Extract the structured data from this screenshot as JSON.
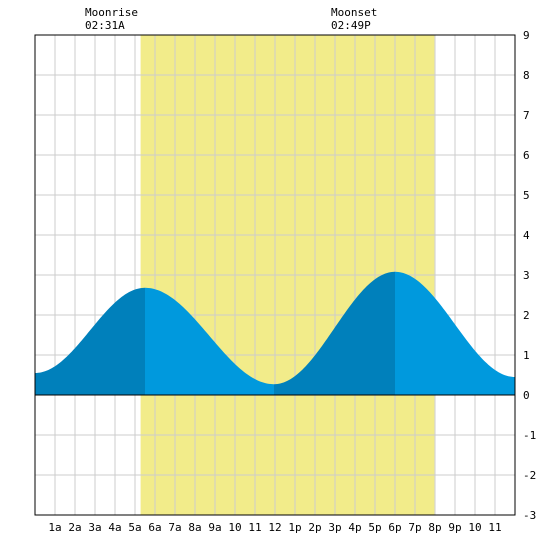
{
  "header": {
    "moonrise_label": "Moonrise",
    "moonrise_time": "02:31A",
    "moonset_label": "Moonset",
    "moonset_time": "02:49P"
  },
  "chart_data": {
    "type": "area",
    "title": "",
    "xlabel": "",
    "ylabel": "",
    "xlim": [
      0,
      24
    ],
    "ylim": [
      -3,
      9
    ],
    "grid": true,
    "y_ticks": [
      9,
      8,
      7,
      6,
      5,
      4,
      3,
      2,
      1,
      0,
      -1,
      -2,
      -3
    ],
    "x_ticks": [
      {
        "x": 1,
        "label": "1a"
      },
      {
        "x": 2,
        "label": "2a"
      },
      {
        "x": 3,
        "label": "3a"
      },
      {
        "x": 4,
        "label": "4a"
      },
      {
        "x": 5,
        "label": "5a"
      },
      {
        "x": 6,
        "label": "6a"
      },
      {
        "x": 7,
        "label": "7a"
      },
      {
        "x": 8,
        "label": "8a"
      },
      {
        "x": 9,
        "label": "9a"
      },
      {
        "x": 10,
        "label": "10"
      },
      {
        "x": 11,
        "label": "11"
      },
      {
        "x": 12,
        "label": "12"
      },
      {
        "x": 13,
        "label": "1p"
      },
      {
        "x": 14,
        "label": "2p"
      },
      {
        "x": 15,
        "label": "3p"
      },
      {
        "x": 16,
        "label": "4p"
      },
      {
        "x": 17,
        "label": "5p"
      },
      {
        "x": 18,
        "label": "6p"
      },
      {
        "x": 19,
        "label": "7p"
      },
      {
        "x": 20,
        "label": "8p"
      },
      {
        "x": 21,
        "label": "9p"
      },
      {
        "x": 22,
        "label": "10"
      },
      {
        "x": 23,
        "label": "11"
      }
    ],
    "daylight": {
      "start": 5.28,
      "end": 19.97
    },
    "tide_extremes": [
      {
        "hour": 0.0,
        "height": 0.55
      },
      {
        "hour": 5.5,
        "height": 2.68
      },
      {
        "hour": 11.95,
        "height": 0.27
      },
      {
        "hour": 18.0,
        "height": 3.08
      },
      {
        "hour": 24.0,
        "height": 0.45
      }
    ],
    "colors": {
      "daylight": "#f2ec8a",
      "tide": "#0099dd",
      "tide_rising": "#0080bb",
      "grid": "#cccccc",
      "axis": "#000000"
    }
  }
}
